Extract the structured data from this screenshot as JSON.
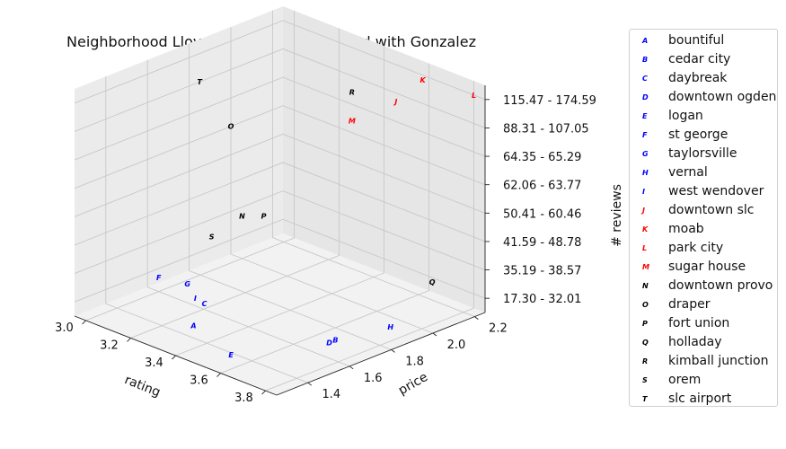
{
  "chart_data": {
    "type": "scatter3d",
    "title": "Neighborhood Lloyd's Algorithm initialized with Gonzalez",
    "xlabel": "rating",
    "ylabel": "price",
    "zlabel": "# reviews",
    "xlim": [
      2.95,
      3.85
    ],
    "ylim": [
      1.25,
      2.25
    ],
    "x_ticks": [
      "3.0",
      "3.2",
      "3.4",
      "3.6",
      "3.8"
    ],
    "y_ticks": [
      "1.4",
      "1.6",
      "1.8",
      "2.0",
      "2.2"
    ],
    "z_ticks": [
      "17.30 - 32.01",
      "35.19 - 38.57",
      "41.59 - 48.78",
      "50.41 - 60.46",
      "62.06 - 63.77",
      "64.35 - 65.29",
      "88.31 - 107.05",
      "115.47 - 174.59"
    ],
    "grid": true,
    "legend_position": "outside-right",
    "cluster_colors": {
      "blue": "#0000ff",
      "red": "#ff0000",
      "black": "#000000"
    },
    "points": [
      {
        "marker": "A",
        "name": "bountiful",
        "rating": 3.35,
        "price": 1.39,
        "reviews": "17.30 - 32.01",
        "color": "#0000ff"
      },
      {
        "marker": "B",
        "name": "cedar city",
        "rating": 3.75,
        "price": 1.64,
        "reviews": "17.30 - 32.01",
        "color": "#0000ff"
      },
      {
        "marker": "C",
        "name": "daybreak",
        "rating": 3.25,
        "price": 1.55,
        "reviews": "17.30 - 32.01",
        "color": "#0000ff"
      },
      {
        "marker": "D",
        "name": "downtown ogden",
        "rating": 3.75,
        "price": 1.61,
        "reviews": "17.30 - 32.01",
        "color": "#0000ff"
      },
      {
        "marker": "E",
        "name": "logan",
        "rating": 3.6,
        "price": 1.3,
        "reviews": "17.30 - 32.01",
        "color": "#0000ff"
      },
      {
        "marker": "F",
        "name": "st george",
        "rating": 3.0,
        "price": 1.6,
        "reviews": "17.30 - 32.01",
        "color": "#0000ff"
      },
      {
        "marker": "G",
        "name": "taylorsville",
        "rating": 3.1,
        "price": 1.63,
        "reviews": "17.30 - 32.01",
        "color": "#0000ff"
      },
      {
        "marker": "H",
        "name": "vernal",
        "rating": 3.8,
        "price": 1.85,
        "reviews": "17.30 - 32.01",
        "color": "#0000ff"
      },
      {
        "marker": "I",
        "name": "west wendover",
        "rating": 3.2,
        "price": 1.56,
        "reviews": "17.30 - 32.01",
        "color": "#0000ff"
      },
      {
        "marker": "J",
        "name": "downtown slc",
        "rating": 3.5,
        "price": 2.2,
        "reviews": "88.31 - 107.05",
        "color": "#ff0000"
      },
      {
        "marker": "K",
        "name": "moab",
        "rating": 3.6,
        "price": 2.22,
        "reviews": "115.47 - 174.59",
        "color": "#ff0000"
      },
      {
        "marker": "L",
        "name": "park city",
        "rating": 3.8,
        "price": 2.25,
        "reviews": "115.47 - 174.59",
        "color": "#ff0000"
      },
      {
        "marker": "M",
        "name": "sugar house",
        "rating": 3.35,
        "price": 2.15,
        "reviews": "64.35 - 65.29",
        "color": "#ff0000"
      },
      {
        "marker": "N",
        "name": "downtown provo",
        "rating": 3.0,
        "price": 2.0,
        "reviews": "35.19 - 38.57",
        "color": "#000000"
      },
      {
        "marker": "O",
        "name": "draper",
        "rating": 2.95,
        "price": 2.0,
        "reviews": "62.06 - 63.77",
        "color": "#000000"
      },
      {
        "marker": "P",
        "name": "fort union",
        "rating": 3.05,
        "price": 2.05,
        "reviews": "35.19 - 38.57",
        "color": "#000000"
      },
      {
        "marker": "Q",
        "name": "holladay",
        "rating": 3.8,
        "price": 2.05,
        "reviews": "35.19 - 38.57",
        "color": "#000000"
      },
      {
        "marker": "R",
        "name": "kimball junction",
        "rating": 3.35,
        "price": 2.15,
        "reviews": "88.31 - 107.05",
        "color": "#000000"
      },
      {
        "marker": "S",
        "name": "orem",
        "rating": 3.05,
        "price": 1.8,
        "reviews": "35.19 - 38.57",
        "color": "#000000"
      },
      {
        "marker": "T",
        "name": "slc airport",
        "rating": 2.95,
        "price": 1.85,
        "reviews": "88.31 - 107.05",
        "color": "#000000"
      }
    ]
  }
}
